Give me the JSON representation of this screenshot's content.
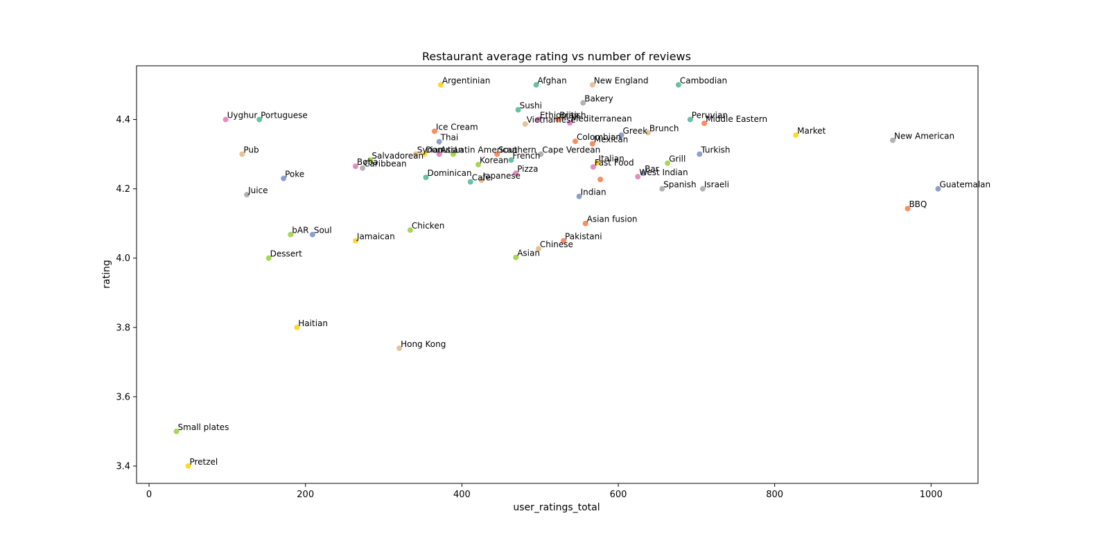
{
  "chart_data": {
    "type": "scatter",
    "title": "Restaurant average rating vs number of reviews",
    "xlabel": "user_ratings_total",
    "ylabel": "rating",
    "xlim": [
      -16,
      1060
    ],
    "ylim": [
      3.35,
      4.555
    ],
    "xticks": [
      0,
      200,
      400,
      600,
      800,
      1000
    ],
    "yticks": [
      3.4,
      3.6,
      3.8,
      4.0,
      4.2,
      4.4
    ],
    "grid": false,
    "legend": "none",
    "points": [
      {
        "label": "Argentinian",
        "x": 373,
        "y": 4.5,
        "color": "#ffd92f"
      },
      {
        "label": "Afghan",
        "x": 495,
        "y": 4.5,
        "color": "#66c2a5"
      },
      {
        "label": "New England",
        "x": 567,
        "y": 4.5,
        "color": "#e5c494"
      },
      {
        "label": "Bakery",
        "x": 555,
        "y": 4.448,
        "color": "#b3b3b3"
      },
      {
        "label": "Cambodian",
        "x": 677,
        "y": 4.5,
        "color": "#66c2a5"
      },
      {
        "label": "Sushi",
        "x": 472,
        "y": 4.428,
        "color": "#66c2a5"
      },
      {
        "label": "Uyghur",
        "x": 98,
        "y": 4.4,
        "color": "#e78ac3"
      },
      {
        "label": "Portuguese",
        "x": 141,
        "y": 4.4,
        "color": "#66c2a5"
      },
      {
        "label": "Ethiopian",
        "x": 498,
        "y": 4.4,
        "color": "#e78ac3"
      },
      {
        "label": "British",
        "x": 523,
        "y": 4.4,
        "color": "#fc8d62"
      },
      {
        "label": "Vietnamese",
        "x": 481,
        "y": 4.387,
        "color": "#e5c494"
      },
      {
        "label": "Mediterranean",
        "x": 538,
        "y": 4.39,
        "color": "#e78ac3"
      },
      {
        "label": "Peruvian",
        "x": 692,
        "y": 4.4,
        "color": "#66c2a5"
      },
      {
        "label": "Middle Eastern",
        "x": 710,
        "y": 4.389,
        "color": "#fc8d62"
      },
      {
        "label": "Ice Cream",
        "x": 365,
        "y": 4.366,
        "color": "#fc8d62"
      },
      {
        "label": "Market",
        "x": 827,
        "y": 4.355,
        "color": "#ffd92f"
      },
      {
        "label": "New American",
        "x": 951,
        "y": 4.34,
        "color": "#b3b3b3"
      },
      {
        "label": "Greek",
        "x": 604,
        "y": 4.355,
        "color": "#8da0cb"
      },
      {
        "label": "Brunch",
        "x": 638,
        "y": 4.362,
        "color": "#e5c494"
      },
      {
        "label": "Thai",
        "x": 371,
        "y": 4.336,
        "color": "#8da0cb"
      },
      {
        "label": "Colombian",
        "x": 545,
        "y": 4.337,
        "color": "#fc8d62"
      },
      {
        "label": "Mexican",
        "x": 567,
        "y": 4.33,
        "color": "#fc8d62"
      },
      {
        "label": "Pub",
        "x": 119,
        "y": 4.3,
        "color": "#e5c494"
      },
      {
        "label": "Syrian",
        "x": 341,
        "y": 4.3,
        "color": "#e5c494"
      },
      {
        "label": "Donuts",
        "x": 352,
        "y": 4.3,
        "color": "#ffd92f"
      },
      {
        "label": "Asian",
        "x": 371,
        "y": 4.3,
        "color": "#e78ac3"
      },
      {
        "label": "Latin American",
        "x": 389,
        "y": 4.3,
        "color": "#a6d854"
      },
      {
        "label": "Southern",
        "x": 445,
        "y": 4.3,
        "color": "#fc8d62"
      },
      {
        "label": "Cape Verdean",
        "x": 501,
        "y": 4.3,
        "color": "#b3b3b3"
      },
      {
        "label": "Turkish",
        "x": 704,
        "y": 4.3,
        "color": "#8da0cb"
      },
      {
        "label": "Salvadorean",
        "x": 283,
        "y": 4.283,
        "color": "#a6d854"
      },
      {
        "label": "French",
        "x": 463,
        "y": 4.283,
        "color": "#66c2a5"
      },
      {
        "label": "Italian",
        "x": 573,
        "y": 4.275,
        "color": "#ffd92f"
      },
      {
        "label": "Grill",
        "x": 663,
        "y": 4.274,
        "color": "#a6d854"
      },
      {
        "label": "Korean",
        "x": 421,
        "y": 4.27,
        "color": "#a6d854"
      },
      {
        "label": "Boba",
        "x": 264,
        "y": 4.265,
        "color": "#e78ac3"
      },
      {
        "label": "Caribbean",
        "x": 273,
        "y": 4.26,
        "color": "#b3b3b3"
      },
      {
        "label": "Fast Food",
        "x": 568,
        "y": 4.263,
        "color": "#e78ac3"
      },
      {
        "label": "Pizza",
        "x": 469,
        "y": 4.245,
        "color": "#e78ac3"
      },
      {
        "label": "Bar",
        "x": 632,
        "y": 4.245,
        "color": "#8da0cb"
      },
      {
        "label": "Dominican",
        "x": 354,
        "y": 4.233,
        "color": "#66c2a5"
      },
      {
        "label": "Poke",
        "x": 172,
        "y": 4.23,
        "color": "#8da0cb"
      },
      {
        "label": "West Indian",
        "x": 625,
        "y": 4.235,
        "color": "#e78ac3"
      },
      {
        "label": "Japanese",
        "x": 425,
        "y": 4.225,
        "color": "#e5c494"
      },
      {
        "label": "Cafe",
        "x": 411,
        "y": 4.22,
        "color": "#66c2a5"
      },
      {
        "label": "",
        "x": 577,
        "y": 4.227,
        "color": "#fc8d62"
      },
      {
        "label": "Spanish",
        "x": 656,
        "y": 4.2,
        "color": "#b3b3b3"
      },
      {
        "label": "Israeli",
        "x": 708,
        "y": 4.2,
        "color": "#b3b3b3"
      },
      {
        "label": "Guatemalan",
        "x": 1009,
        "y": 4.2,
        "color": "#8da0cb"
      },
      {
        "label": "Juice",
        "x": 125,
        "y": 4.183,
        "color": "#b3b3b3"
      },
      {
        "label": "Indian",
        "x": 550,
        "y": 4.178,
        "color": "#8da0cb"
      },
      {
        "label": "BBQ",
        "x": 970,
        "y": 4.143,
        "color": "#fc8d62"
      },
      {
        "label": "Asian fusion",
        "x": 558,
        "y": 4.1,
        "color": "#fc8d62"
      },
      {
        "label": "Chicken",
        "x": 334,
        "y": 4.081,
        "color": "#a6d854"
      },
      {
        "label": "bAR",
        "x": 181,
        "y": 4.068,
        "color": "#a6d854"
      },
      {
        "label": "Soul",
        "x": 209,
        "y": 4.068,
        "color": "#8da0cb"
      },
      {
        "label": "Jamaican",
        "x": 264,
        "y": 4.05,
        "color": "#ffd92f"
      },
      {
        "label": "Pakistani",
        "x": 530,
        "y": 4.05,
        "color": "#fc8d62"
      },
      {
        "label": "Chinese",
        "x": 498,
        "y": 4.027,
        "color": "#e5c494"
      },
      {
        "label": "Asian",
        "x": 469,
        "y": 4.002,
        "color": "#a6d854"
      },
      {
        "label": "Dessert",
        "x": 153,
        "y": 4.0,
        "color": "#a6d854"
      },
      {
        "label": "Haitian",
        "x": 189,
        "y": 3.8,
        "color": "#ffd92f"
      },
      {
        "label": "Hong Kong",
        "x": 320,
        "y": 3.74,
        "color": "#e5c494"
      },
      {
        "label": "Small plates",
        "x": 35,
        "y": 3.5,
        "color": "#a6d854"
      },
      {
        "label": "Pretzel",
        "x": 50,
        "y": 3.4,
        "color": "#ffd92f"
      }
    ]
  }
}
